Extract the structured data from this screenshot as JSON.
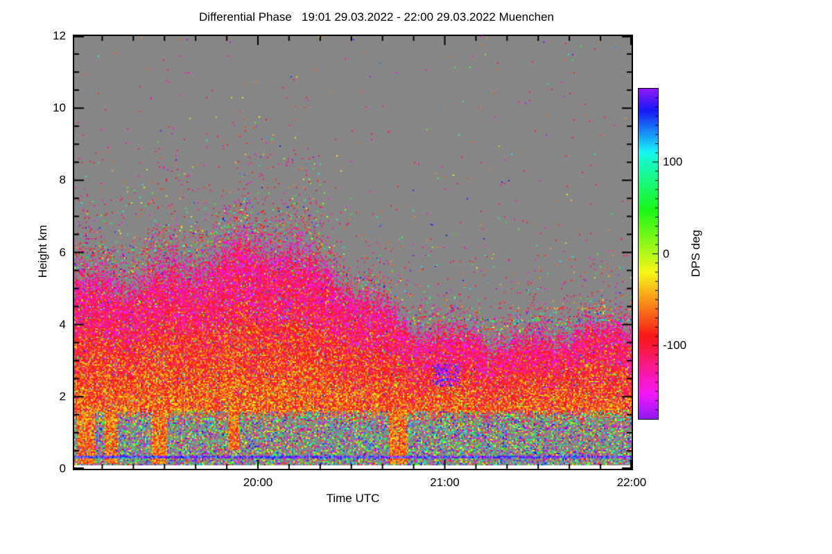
{
  "figure": {
    "background": "#ffffff"
  },
  "chart_data": {
    "type": "heatmap",
    "title": "Differential Phase   19:01 29.03.2022 - 22:00 29.03.2022 Muenchen",
    "xlabel": "Time UTC",
    "ylabel": "Height km",
    "x_start": "19:01",
    "x_end": "22:00",
    "x_total_minutes": 179,
    "x_ticks": [
      {
        "label": "20:00",
        "minute": 59
      },
      {
        "label": "21:00",
        "minute": 119
      },
      {
        "label": "22:00",
        "minute": 179
      }
    ],
    "x_minor_step_minutes": 10,
    "x_minor_first_minute": 9,
    "ylim": [
      0,
      12
    ],
    "y_ticks": [
      {
        "label": "12",
        "km": 12
      },
      {
        "label": "10",
        "km": 10
      },
      {
        "label": "8",
        "km": 8
      },
      {
        "label": "6",
        "km": 6
      },
      {
        "label": "4",
        "km": 4
      },
      {
        "label": "2",
        "km": 2
      },
      {
        "label": "0",
        "km": 0
      }
    ],
    "y_minor_step_km": 0.5,
    "colorbar": {
      "label": "DPS deg",
      "range": [
        -180,
        180
      ],
      "ticks": [
        {
          "label": "100",
          "value": 100
        },
        {
          "label": "0",
          "value": 0
        },
        {
          "label": "-100",
          "value": -100
        }
      ],
      "minor_tick_step": 10,
      "hue_anchors": [
        [
          180,
          272
        ],
        [
          100,
          166
        ],
        [
          0,
          78
        ],
        [
          -100,
          -9
        ],
        [
          -180,
          -88
        ]
      ],
      "saturation": 93,
      "lightness": 53
    },
    "no_data_color": "#868686",
    "below_min_range_color": "#ffffff",
    "field": {
      "seed": 1337,
      "cloud_top_km": [
        [
          0,
          5.5
        ],
        [
          12,
          5.55
        ],
        [
          25,
          5.8
        ],
        [
          40,
          6.15
        ],
        [
          55,
          6.65
        ],
        [
          70,
          6.35
        ],
        [
          88,
          5.2
        ],
        [
          104,
          4.35
        ],
        [
          119,
          4.05
        ],
        [
          132,
          4.0
        ],
        [
          147,
          3.8
        ],
        [
          163,
          4.05
        ],
        [
          179,
          3.95
        ]
      ],
      "fringe_early_km": 0.95,
      "fringe_late_km": 0.55,
      "fringe_switch_minute": 80,
      "surface_top_km": 1.6,
      "surface_speckle_density": 0.47,
      "ground_line_km": 0.33,
      "min_range_km": 0.1,
      "precip_columns": [
        {
          "t": [
            1,
            6.5
          ],
          "bottom_km": 0.12
        },
        {
          "t": [
            10,
            14
          ],
          "bottom_km": 0.12
        },
        {
          "t": [
            25,
            30
          ],
          "bottom_km": 0.12
        },
        {
          "t": [
            49.5,
            53
          ],
          "bottom_km": 0.5
        },
        {
          "t": [
            101,
            107
          ],
          "bottom_km": 0.12
        }
      ],
      "streaks": [
        {
          "t": [
            61,
            80
          ],
          "km": [
            7.35,
            7.35
          ],
          "density": 0.22,
          "palette": "warm"
        },
        {
          "t": [
            104,
            121
          ],
          "km": [
            7.5,
            6.4
          ],
          "density": 0.18,
          "palette": "any"
        },
        {
          "t": [
            118,
            179
          ],
          "km": [
            4.13,
            4.13
          ],
          "density": 0.5,
          "palette": "any"
        },
        {
          "t": [
            120,
            148
          ],
          "km": [
            4.46,
            4.46
          ],
          "density": 0.12,
          "palette": "red"
        },
        {
          "t": [
            146,
            179
          ],
          "km": [
            4.46,
            4.46
          ],
          "density": 0.45,
          "palette": "red"
        }
      ],
      "purple_patch": {
        "t": [
          115,
          124
        ],
        "km": [
          2.3,
          2.9
        ],
        "density": 0.5
      }
    }
  }
}
